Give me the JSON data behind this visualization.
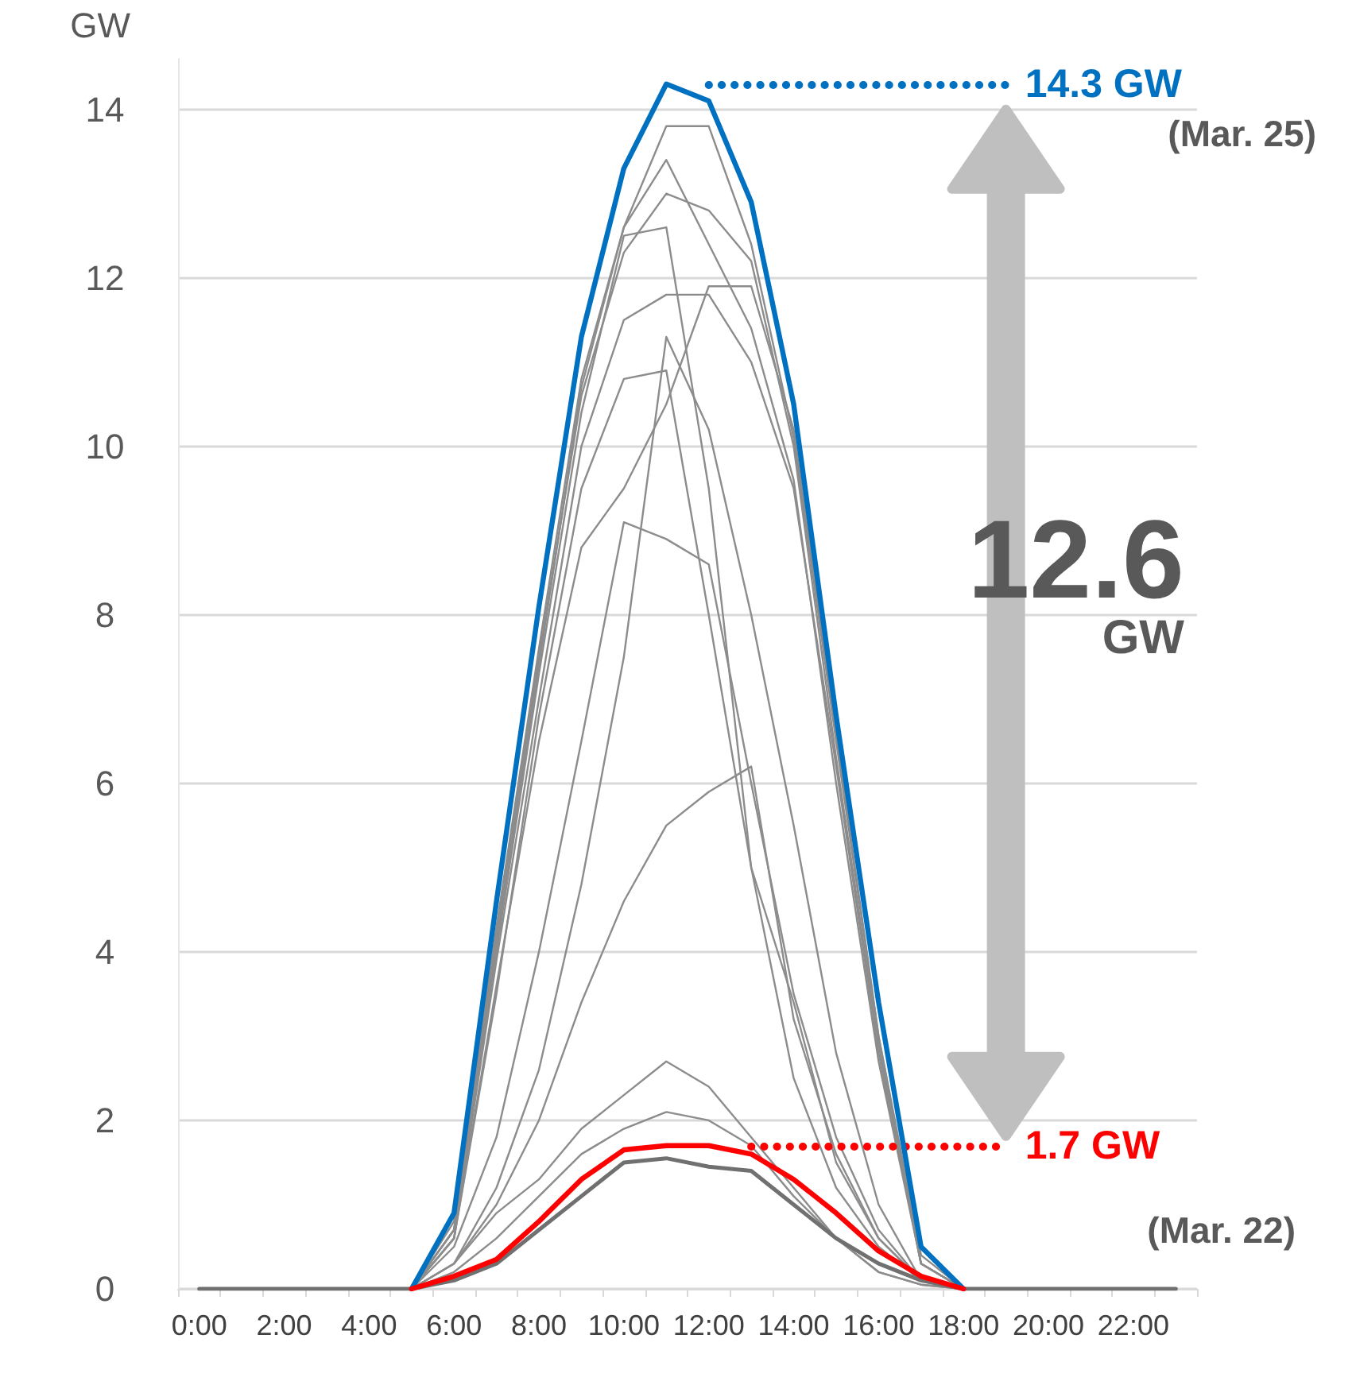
{
  "chart_data": {
    "type": "line",
    "ylabel": "GW",
    "categories": [
      "0:00",
      null,
      "2:00",
      null,
      "4:00",
      null,
      "6:00",
      null,
      "8:00",
      null,
      "10:00",
      null,
      "12:00",
      null,
      "14:00",
      null,
      "16:00",
      null,
      "18:00",
      null,
      "20:00",
      null,
      "22:00",
      null
    ],
    "series": [
      {
        "color": "#8c8c8c",
        "values": [
          null,
          null,
          null,
          null,
          null,
          0,
          0.8,
          4.3,
          7.6,
          10.8,
          12.6,
          13.8,
          13.8,
          12.4,
          10.1,
          6.5,
          3.0,
          0.4,
          0,
          null,
          null,
          null,
          null,
          null
        ]
      },
      {
        "color": "#8c8c8c",
        "values": [
          null,
          null,
          null,
          null,
          null,
          0,
          0.7,
          4.2,
          7.5,
          10.6,
          12.3,
          13.0,
          12.8,
          12.2,
          10.0,
          6.3,
          2.9,
          0.3,
          0,
          null,
          null,
          null,
          null,
          null
        ]
      },
      {
        "color": "#8c8c8c",
        "values": [
          null,
          null,
          null,
          null,
          null,
          0,
          0.7,
          4.1,
          7.4,
          10.7,
          12.6,
          13.4,
          12.4,
          11.4,
          9.6,
          6.0,
          2.7,
          0.3,
          0,
          null,
          null,
          null,
          null,
          null
        ]
      },
      {
        "color": "#8c8c8c",
        "values": [
          null,
          null,
          null,
          null,
          null,
          0,
          0.6,
          3.9,
          7.0,
          10.0,
          11.5,
          11.8,
          11.8,
          11.0,
          9.5,
          6.2,
          2.8,
          0.3,
          0,
          null,
          null,
          null,
          null,
          null
        ]
      },
      {
        "color": "#8c8c8c",
        "values": [
          null,
          null,
          null,
          null,
          null,
          0,
          0.6,
          3.6,
          6.5,
          8.8,
          9.5,
          10.5,
          11.9,
          11.9,
          10.2,
          6.6,
          3.0,
          0.3,
          0,
          null,
          null,
          null,
          null,
          null
        ]
      },
      {
        "color": "#8c8c8c",
        "values": [
          null,
          null,
          null,
          null,
          null,
          0,
          0.7,
          4.0,
          7.3,
          10.4,
          12.5,
          12.6,
          9.5,
          5.0,
          3.4,
          1.5,
          0.6,
          0.1,
          0,
          null,
          null,
          null,
          null,
          null
        ]
      },
      {
        "color": "#8c8c8c",
        "values": [
          null,
          null,
          null,
          null,
          null,
          0,
          0.6,
          3.5,
          6.8,
          9.5,
          10.8,
          10.9,
          8.0,
          5.0,
          2.5,
          1.2,
          0.5,
          0.1,
          0,
          null,
          null,
          null,
          null,
          null
        ]
      },
      {
        "color": "#8c8c8c",
        "values": [
          null,
          null,
          null,
          null,
          null,
          0,
          0.3,
          1.2,
          2.6,
          4.8,
          7.5,
          11.3,
          10.2,
          8.0,
          5.5,
          2.8,
          1.0,
          0.1,
          0,
          null,
          null,
          null,
          null,
          null
        ]
      },
      {
        "color": "#8c8c8c",
        "values": [
          null,
          null,
          null,
          null,
          null,
          0,
          0.5,
          1.8,
          4.0,
          6.5,
          9.1,
          8.9,
          8.6,
          6.0,
          3.5,
          1.8,
          0.7,
          0.1,
          0,
          null,
          null,
          null,
          null,
          null
        ]
      },
      {
        "color": "#8c8c8c",
        "values": [
          null,
          null,
          null,
          null,
          null,
          0,
          0.3,
          1.0,
          2.0,
          3.4,
          4.6,
          5.5,
          5.9,
          6.2,
          3.2,
          1.6,
          0.6,
          0.1,
          0,
          null,
          null,
          null,
          null,
          null
        ]
      },
      {
        "color": "#8c8c8c",
        "values": [
          null,
          null,
          null,
          null,
          null,
          0,
          0.3,
          0.9,
          1.3,
          1.9,
          2.3,
          2.7,
          2.4,
          1.8,
          1.2,
          0.6,
          0.2,
          0.05,
          0,
          null,
          null,
          null,
          null,
          null
        ]
      },
      {
        "color": "#8c8c8c",
        "values": [
          null,
          null,
          null,
          null,
          null,
          0,
          0.2,
          0.6,
          1.1,
          1.6,
          1.9,
          2.1,
          2.0,
          1.7,
          1.1,
          0.6,
          0.2,
          0.05,
          0,
          null,
          null,
          null,
          null,
          null
        ]
      },
      {
        "color": "#707070",
        "values": [
          0,
          0,
          0,
          0,
          0,
          0,
          0.1,
          0.3,
          0.7,
          1.1,
          1.5,
          1.55,
          1.45,
          1.4,
          1.0,
          0.6,
          0.3,
          0.1,
          0,
          0,
          0,
          0,
          0,
          0
        ]
      },
      {
        "color": "#0070c0",
        "values": [
          null,
          null,
          null,
          null,
          null,
          0,
          0.9,
          4.6,
          8.1,
          11.3,
          13.3,
          14.3,
          14.1,
          12.9,
          10.5,
          6.8,
          3.4,
          0.5,
          0,
          null,
          null,
          null,
          null,
          null
        ]
      },
      {
        "color": "#ff0000",
        "values": [
          null,
          null,
          null,
          null,
          null,
          0,
          0.15,
          0.35,
          0.8,
          1.3,
          1.65,
          1.7,
          1.7,
          1.6,
          1.3,
          0.9,
          0.45,
          0.15,
          0,
          null,
          null,
          null,
          null,
          null
        ]
      }
    ],
    "ylim": [
      0,
      14.6
    ],
    "yticks": [
      0,
      2,
      4,
      6,
      8,
      10,
      12,
      14
    ],
    "grid": "y",
    "marker": "none",
    "line_style": "solid",
    "ref_lines": [
      {
        "axis": "y",
        "value": 14.3,
        "label": "14.3 GW",
        "color": "#0070c0",
        "line_style": "dotted"
      },
      {
        "axis": "y",
        "value": 1.7,
        "label": "1.7 GW",
        "color": "#ff0000",
        "line_style": "dotted"
      }
    ],
    "annotations": [
      "(Mar. 25)",
      "12.6 GW",
      "(Mar. 22)"
    ]
  }
}
